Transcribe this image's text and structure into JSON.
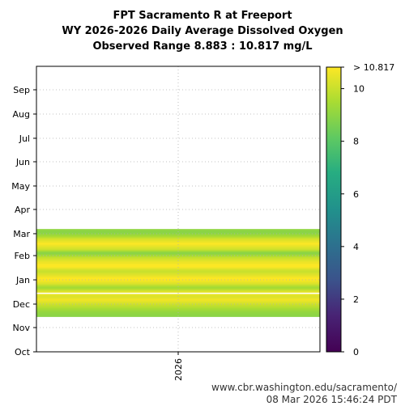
{
  "chart_data": {
    "type": "heatmap",
    "title": "FPT Sacramento R at Freeport",
    "subtitle": "WY 2026-2026 Daily Average Dissolved Oxygen",
    "range_text": "Observed Range 8.883 : 10.817 mg/L",
    "x_categories": [
      "2026"
    ],
    "y_tick_labels": [
      "Oct",
      "Nov",
      "Dec",
      "Jan",
      "Feb",
      "Mar",
      "Apr",
      "May",
      "Jun",
      "Jul",
      "Aug",
      "Sep"
    ],
    "colorbar": {
      "min": 0,
      "max": 10.817,
      "ticks": [
        0,
        2,
        4,
        6,
        8,
        10
      ],
      "top_label": "> 10.817",
      "colormap": "viridis"
    },
    "grid": true,
    "series": [
      {
        "start_day": 45,
        "values": [
          8.9,
          8.95,
          9.0,
          9.0,
          9.05,
          9.1,
          9.15,
          9.2,
          9.3,
          9.4,
          9.5,
          9.6,
          9.7,
          9.8,
          9.9,
          10.0,
          10.1,
          10.2,
          10.3,
          10.4,
          10.5,
          10.6,
          10.6,
          10.5,
          10.4,
          10.3,
          10.3,
          10.4,
          10.5,
          10.6,
          10.6,
          10.5,
          10.3,
          10.1,
          9.9,
          9.7,
          9.5,
          9.4,
          9.5,
          9.7,
          9.9,
          10.1,
          10.3,
          10.4,
          10.5,
          10.6,
          10.7,
          10.7,
          10.8,
          10.8,
          10.7,
          10.6,
          10.5,
          10.4,
          10.3,
          10.2,
          10.1,
          10.0,
          10.0,
          10.1,
          10.2,
          10.4,
          10.6,
          10.7,
          10.8,
          10.8,
          10.8,
          10.7,
          10.6,
          10.6,
          10.5,
          10.4,
          10.3,
          10.2,
          10.1,
          10.0,
          9.8,
          9.6,
          9.4,
          9.2,
          9.0,
          8.9,
          9.0,
          9.3,
          9.6,
          9.9,
          10.1,
          10.2,
          10.3,
          10.4,
          10.5,
          10.6,
          10.7,
          10.8,
          10.7,
          10.6,
          10.5,
          10.4,
          10.3,
          10.2,
          10.0,
          9.8,
          9.6,
          9.4,
          9.3,
          9.2,
          9.0,
          8.9,
          8.9,
          8.95,
          9.0,
          9.05
        ]
      }
    ],
    "gap_days": [
      74,
      75
    ]
  },
  "footer": {
    "url": "www.cbr.washington.edu/sacramento/",
    "timestamp": "08 Mar 2026 15:46:24 PDT"
  }
}
